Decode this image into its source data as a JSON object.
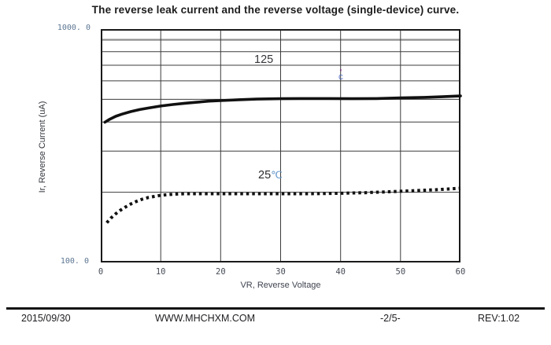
{
  "title": "The reverse leak current and the reverse voltage (single-device) curve.",
  "chart_data": {
    "type": "line",
    "title": "The reverse leak current and the reverse voltage (single-device) curve.",
    "xlabel": "VR, Reverse Voltage",
    "ylabel": "Ir, Reverse Current (uA)",
    "xlim": [
      0,
      60
    ],
    "ylim": [
      100,
      1000
    ],
    "yscale": "log",
    "grid": true,
    "x_ticks": [
      0,
      10,
      20,
      30,
      40,
      50,
      60
    ],
    "x_gridlines": [
      10,
      20,
      30,
      40,
      50
    ],
    "y_gridlines": [
      200,
      300,
      400,
      500,
      600,
      700,
      800,
      900
    ],
    "y_top_label": "1000. 0",
    "y_bottom_label": "100. 0",
    "series": [
      {
        "name": "125C",
        "style": "solid",
        "stroke_width": 3.6,
        "points": [
          [
            0.7,
            399
          ],
          [
            1.5,
            411
          ],
          [
            2.5,
            423
          ],
          [
            3.5,
            432
          ],
          [
            5,
            443
          ],
          [
            6.5,
            452
          ],
          [
            8,
            459
          ],
          [
            10,
            468
          ],
          [
            12,
            475
          ],
          [
            14,
            481
          ],
          [
            16,
            486
          ],
          [
            18,
            491
          ],
          [
            20,
            494
          ],
          [
            23,
            498
          ],
          [
            26,
            501
          ],
          [
            30,
            503
          ],
          [
            34,
            504
          ],
          [
            38,
            504
          ],
          [
            42,
            503
          ],
          [
            46,
            504
          ],
          [
            50,
            507
          ],
          [
            54,
            510
          ],
          [
            57,
            513
          ],
          [
            60,
            517
          ]
        ]
      },
      {
        "name": "25C",
        "style": "dotted",
        "stroke_width": 4,
        "points": [
          [
            1,
            148
          ],
          [
            1.7,
            155
          ],
          [
            2.4,
            161
          ],
          [
            3.2,
            167
          ],
          [
            4,
            172
          ],
          [
            5,
            178
          ],
          [
            6,
            183
          ],
          [
            7,
            187
          ],
          [
            8,
            190
          ],
          [
            9,
            192
          ],
          [
            10,
            194
          ],
          [
            12,
            196
          ],
          [
            14,
            197
          ],
          [
            17,
            197
          ],
          [
            20,
            197
          ],
          [
            25,
            197
          ],
          [
            30,
            197
          ],
          [
            35,
            197
          ],
          [
            40,
            198
          ],
          [
            44,
            199
          ],
          [
            48,
            201
          ],
          [
            52,
            203
          ],
          [
            56,
            205
          ],
          [
            60,
            208
          ]
        ]
      }
    ],
    "annotations": {
      "label_125": "125",
      "degree_vertical_top": "°",
      "degree_vertical_bottom": "C",
      "label_25": "25",
      "label_25_degree": "℃"
    }
  },
  "colors": {
    "curve": "#111111",
    "gridline": "#3c3c3c",
    "accent_gridline": "#8f8f8f",
    "border": "#1a1a1a"
  },
  "footer": {
    "date": "2015/09/30",
    "website": "WWW.MHCHXM.COM",
    "page": "-2/5-",
    "revision": "REV:1.02"
  }
}
